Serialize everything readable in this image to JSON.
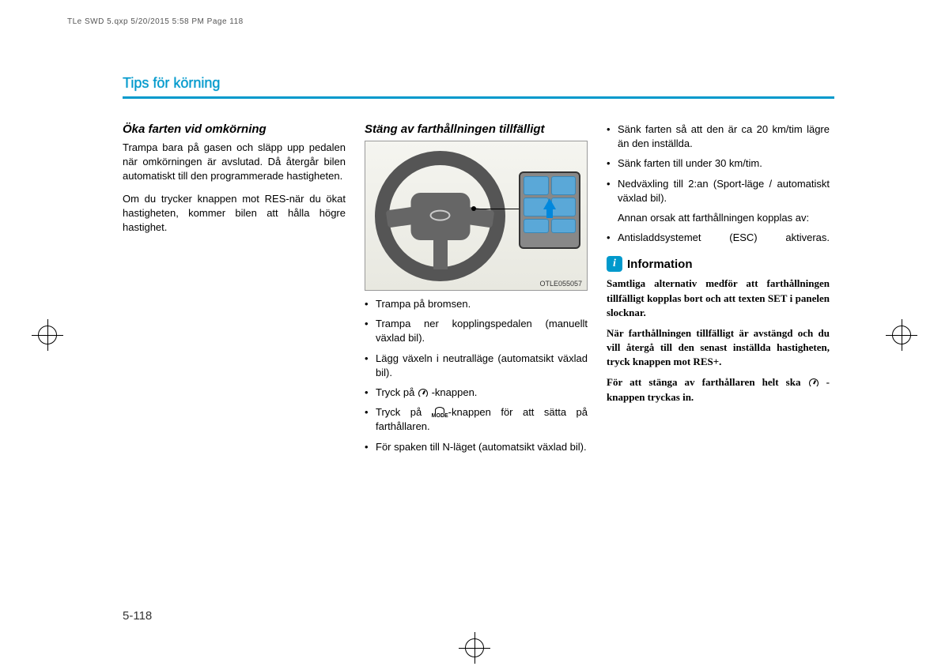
{
  "meta": {
    "header": "TLe SWD 5.qxp  5/20/2015  5:58 PM  Page 118"
  },
  "section_title": "Tips för körning",
  "col1": {
    "heading": "Öka farten vid omkörning",
    "p1": "Trampa bara på gasen och släpp upp pedalen när omkörningen är avslutad. Då återgår bilen automatiskt till den programmerade hastigheten.",
    "p2": "Om du trycker knappen mot RES-när du ökat hastigheten, kommer bilen att hålla högre hastighet."
  },
  "col2": {
    "heading": "Stäng av farthållningen tillfälligt",
    "fig_code": "OTLE055057",
    "b1": "Trampa på bromsen.",
    "b2": "Trampa ner kopplingspedalen (manuellt växlad bil).",
    "b3": "Lägg växeln i neutralläge (automatsikt växlad bil).",
    "b4a": "Tryck på ",
    "b4b": " -knappen.",
    "b5a": "Tryck på ",
    "b5b": "-knappen för att sätta på farthållaren.",
    "b6": "För spaken till N-läget (automatsikt växlad bil).",
    "mode_label": "MODE"
  },
  "col3": {
    "b1": "Sänk farten så att den är ca 20 km/tim lägre än den inställda.",
    "b2": "Sänk farten till under 30 km/tim.",
    "b3": "Nedväxling till 2:an (Sport-läge / automatiskt växlad bil).",
    "note": "Annan orsak att farthållningen kopplas av:",
    "b4": "Antisladdsystemet (ESC) aktiveras.",
    "info_heading": "Information",
    "info_p1": "Samtliga alternativ medför att farthållningen tillfälligt kopplas bort och att texten SET i panelen slocknar.",
    "info_p2": "När farthållningen tillfälligt är avstängd och du vill återgå till den senast inställda hastigheten, tryck knappen mot RES+.",
    "info_p3a": "För att stänga av farthållaren helt ska ",
    "info_p3b": " -knappen tryckas in."
  },
  "page_number": "5-118",
  "colors": {
    "accent": "#0099cc",
    "text": "#000000",
    "button_blue": "#5aa8d8"
  }
}
